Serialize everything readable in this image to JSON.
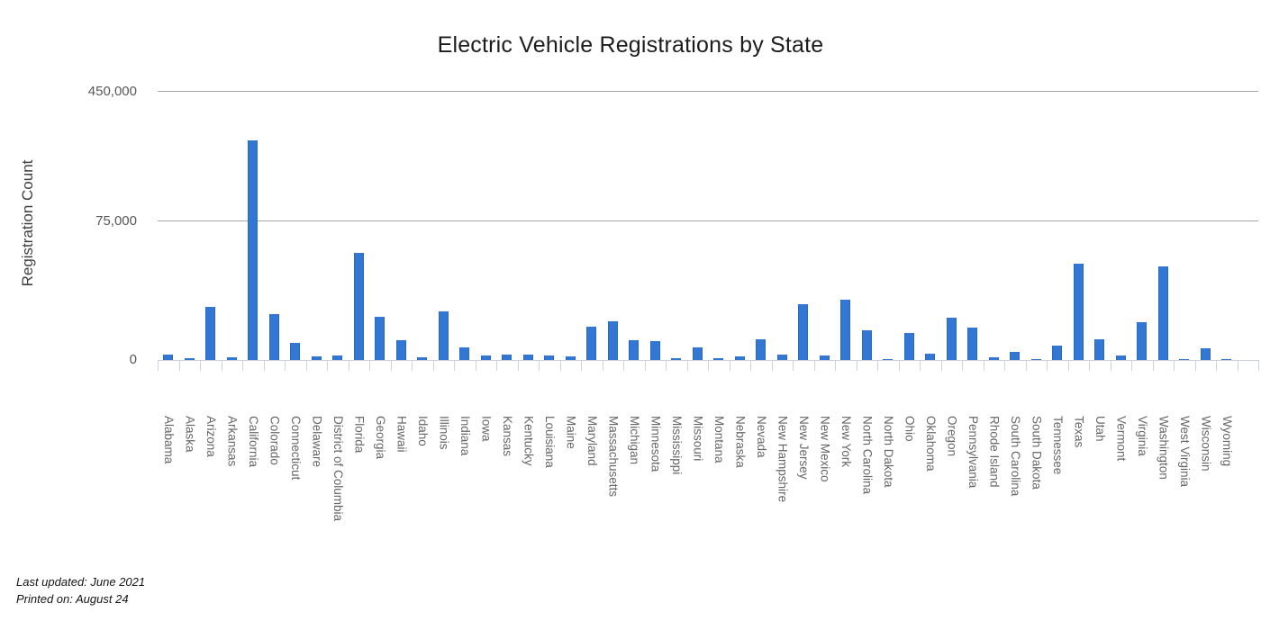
{
  "title": "Electric Vehicle Registrations by State",
  "footer": {
    "last_updated": "Last updated: June 2021",
    "printed_on": "Printed on: August 24"
  },
  "colors": {
    "bar": "#3377d4",
    "gridline": "#a6a6a6",
    "axis_line": "#ccd0d8",
    "tick_mark": "#ccd3df",
    "title_text": "#1c1c1c",
    "axis_text": "#575757",
    "category_text": "#666666"
  },
  "chart_data": {
    "type": "bar",
    "title": "Electric Vehicle Registrations by State",
    "xlabel": "",
    "ylabel": "Registration Count",
    "legend": false,
    "grid": "horizontal gridlines at y ticks only",
    "y_axis": {
      "tick_values": [
        0,
        75000,
        450000
      ],
      "tick_labels": [
        "0",
        "75,000",
        "450,000"
      ],
      "scale_note": "non-linear axis: gridlines for 0, 75,000 and 450,000 are almost evenly spaced; values interpolate piecewise-linearly between ticks"
    },
    "categories": [
      "Alabama",
      "Alaska",
      "Arizona",
      "Arkansas",
      "California",
      "Colorado",
      "Connecticut",
      "Delaware",
      "District of Columbia",
      "Florida",
      "Georgia",
      "Hawaii",
      "Idaho",
      "Illinois",
      "Indiana",
      "Iowa",
      "Kansas",
      "Kentucky",
      "Louisiana",
      "Maine",
      "Maryland",
      "Massachusetts",
      "Michigan",
      "Minnesota",
      "Mississippi",
      "Missouri",
      "Montana",
      "Nebraska",
      "Nevada",
      "New Hampshire",
      "New Jersey",
      "New Mexico",
      "New York",
      "North Carolina",
      "North Dakota",
      "Ohio",
      "Oklahoma",
      "Oregon",
      "Pennsylvania",
      "Rhode Island",
      "South Carolina",
      "South Dakota",
      "Tennessee",
      "Texas",
      "Utah",
      "Vermont",
      "Virginia",
      "Washington",
      "West Virginia",
      "Wisconsin",
      "Wyoming"
    ],
    "values": [
      2890,
      940,
      28770,
      1330,
      310000,
      24670,
      9040,
      1950,
      2620,
      58160,
      23530,
      10670,
      1680,
      26420,
      6990,
      2260,
      2850,
      3030,
      2420,
      1880,
      17970,
      21010,
      10500,
      10380,
      780,
      6740,
      940,
      1810,
      11040,
      2690,
      30420,
      2620,
      32590,
      16160,
      220,
      14530,
      3410,
      22850,
      17330,
      1560,
      4390,
      440,
      7810,
      52190,
      11230,
      2650,
      20640,
      50520,
      720,
      6310,
      510
    ]
  }
}
